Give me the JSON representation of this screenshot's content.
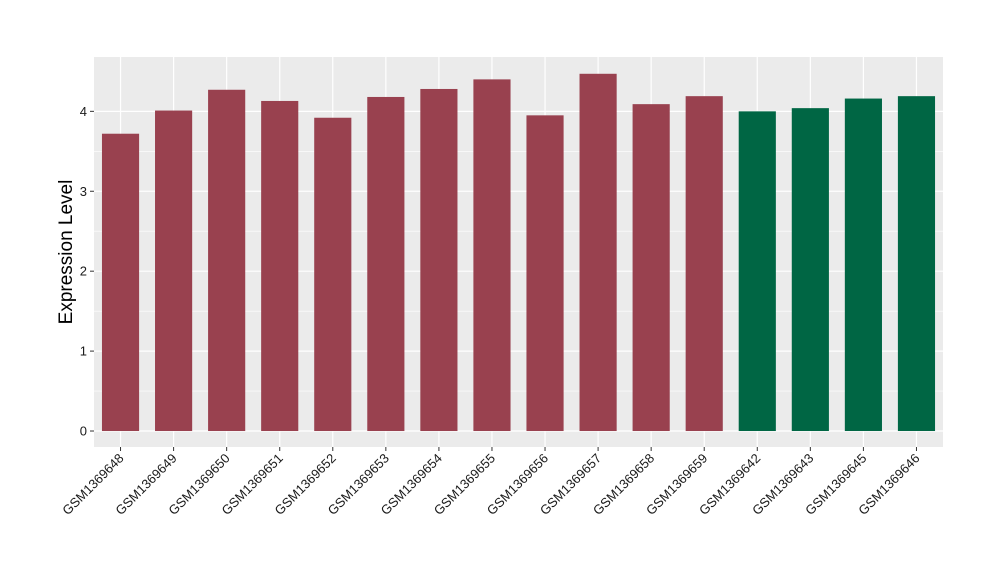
{
  "chart_data": {
    "type": "bar",
    "title": "",
    "xlabel": "",
    "ylabel": "Expression Level",
    "ylim": [
      -0.2,
      4.68
    ],
    "yticks": [
      0,
      1,
      2,
      3,
      4
    ],
    "grid": true,
    "background": "#ebebeb",
    "categories": [
      "GSM1369648",
      "GSM1369649",
      "GSM1369650",
      "GSM1369651",
      "GSM1369652",
      "GSM1369653",
      "GSM1369654",
      "GSM1369655",
      "GSM1369656",
      "GSM1369657",
      "GSM1369658",
      "GSM1369659",
      "GSM1369642",
      "GSM1369643",
      "GSM1369645",
      "GSM1369646"
    ],
    "values": [
      3.72,
      4.01,
      4.27,
      4.13,
      3.92,
      4.18,
      4.28,
      4.4,
      3.95,
      4.47,
      4.09,
      4.19,
      4.0,
      4.04,
      4.16,
      4.19
    ],
    "bar_colors": [
      "#99414f",
      "#99414f",
      "#99414f",
      "#99414f",
      "#99414f",
      "#99414f",
      "#99414f",
      "#99414f",
      "#99414f",
      "#99414f",
      "#99414f",
      "#99414f",
      "#006644",
      "#006644",
      "#006644",
      "#006644"
    ]
  }
}
